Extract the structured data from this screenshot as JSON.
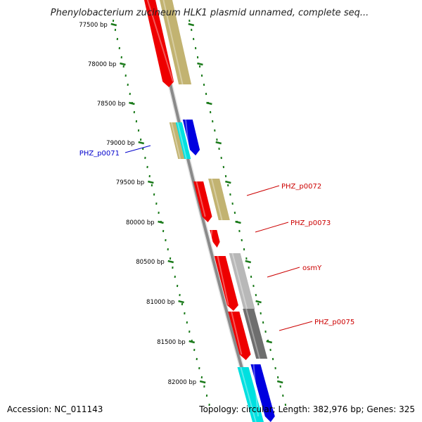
{
  "title": "Phenylobacterium zucineum HLK1 plasmid unnamed, complete seq...",
  "footer": {
    "accession": "Accession: NC_011143",
    "summary": "Topology: circular; Length: 382,976 bp; Genes: 325"
  },
  "colors": {
    "backbone": "#8a8a8a",
    "tick": "#1a7a1a",
    "red": "#ee0000",
    "khaki": "#c2b371",
    "blue": "#0000e0",
    "cyan": "#00e0e0",
    "light_gray": "#b8b8b8",
    "dark_gray": "#6e6e6e",
    "label_blue": "#0000cc",
    "label_red": "#cc0000"
  },
  "ticks": [
    {
      "label": "77500 bp"
    },
    {
      "label": "78000 bp"
    },
    {
      "label": "78500 bp"
    },
    {
      "label": "79000 bp"
    },
    {
      "label": "79500 bp"
    },
    {
      "label": "80000 bp"
    },
    {
      "label": "80500 bp"
    },
    {
      "label": "81000 bp"
    },
    {
      "label": "81500 bp"
    },
    {
      "label": "82000 bp"
    }
  ],
  "gene_labels": [
    {
      "text": "PHZ_p0071",
      "color": "blue"
    },
    {
      "text": "PHZ_p0072",
      "color": "red"
    },
    {
      "text": "PHZ_p0073",
      "color": "red"
    },
    {
      "text": "osmY",
      "color": "red"
    },
    {
      "text": "PHZ_p0075",
      "color": "red"
    }
  ]
}
